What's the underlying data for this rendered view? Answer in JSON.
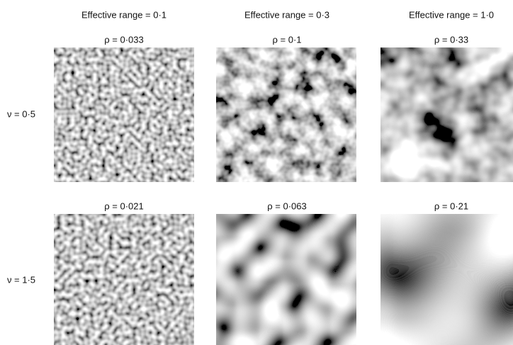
{
  "columns": [
    "Effective range = 0·1",
    "Effective range = 0·3",
    "Effective range = 1·0"
  ],
  "rows": [
    {
      "label": "ν = 0·5",
      "panels": [
        "ρ = 0·033",
        "ρ = 0·1",
        "ρ = 0·33"
      ]
    },
    {
      "label": "ν = 1·5",
      "panels": [
        "ρ = 0·021",
        "ρ = 0·063",
        "ρ = 0·21"
      ]
    }
  ]
}
